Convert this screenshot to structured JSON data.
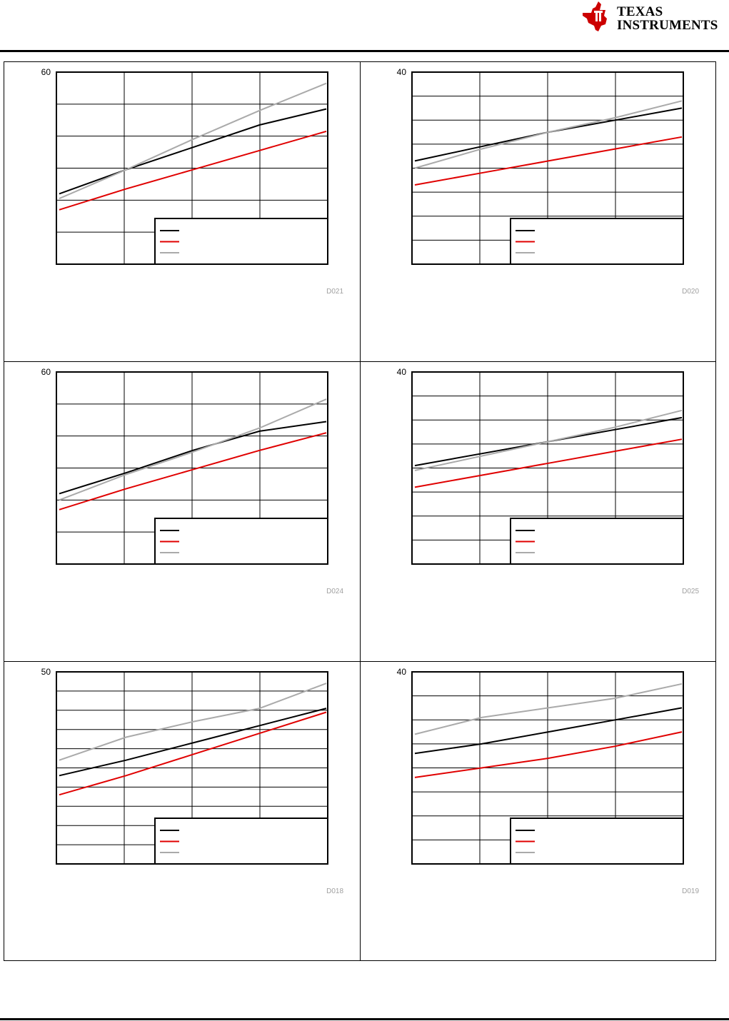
{
  "header": {
    "logo_line1": "TEXAS",
    "logo_line2": "INSTRUMENTS",
    "logo_colors": {
      "mark": "#cc0000"
    }
  },
  "colors": {
    "series1": "#000000",
    "series2": "#e00000",
    "series3": "#aaaaaa"
  },
  "chart_data": [
    {
      "type": "line",
      "figure_id": "D021",
      "ylim": [
        0,
        60
      ],
      "ytick_label": "60",
      "x": [
        0,
        1,
        2,
        3,
        4
      ],
      "grid": true,
      "legend": "bottom-right",
      "series": [
        {
          "values": [
            22,
            29.5,
            36.5,
            43.5,
            48.5
          ]
        },
        {
          "values": [
            17,
            23.5,
            29.5,
            35.5,
            41.5
          ]
        },
        {
          "values": [
            20.5,
            29.5,
            39,
            48,
            56.5
          ]
        }
      ]
    },
    {
      "type": "line",
      "figure_id": "D020",
      "ylim": [
        0,
        40
      ],
      "ytick_label": "40",
      "x": [
        0,
        1,
        2,
        3,
        4
      ],
      "grid": true,
      "legend": "bottom-right",
      "series": [
        {
          "values": [
            21.5,
            24.5,
            27.5,
            30,
            32.5
          ]
        },
        {
          "values": [
            16.5,
            19,
            21.5,
            24,
            26.5
          ]
        },
        {
          "values": [
            20,
            24,
            27.5,
            30.5,
            34
          ]
        }
      ]
    },
    {
      "type": "line",
      "figure_id": "D024",
      "ylim": [
        0,
        60
      ],
      "ytick_label": "60",
      "x": [
        0,
        1,
        2,
        3,
        4
      ],
      "grid": true,
      "legend": "bottom-right",
      "series": [
        {
          "values": [
            22.0,
            28.5,
            35.5,
            41.5,
            44.5
          ]
        },
        {
          "values": [
            17,
            23.5,
            29.5,
            35.5,
            41
          ]
        },
        {
          "values": [
            20,
            28,
            35,
            42.5,
            51.5
          ]
        }
      ]
    },
    {
      "type": "line",
      "figure_id": "D025",
      "ylim": [
        0,
        40
      ],
      "ytick_label": "40",
      "x": [
        0,
        1,
        2,
        3,
        4
      ],
      "grid": true,
      "legend": "bottom-right",
      "series": [
        {
          "values": [
            20.5,
            23,
            25.5,
            28,
            30.5
          ]
        },
        {
          "values": [
            16,
            18.5,
            21,
            23.5,
            26
          ]
        },
        {
          "values": [
            19.5,
            22.5,
            25.5,
            28.5,
            32
          ]
        }
      ]
    },
    {
      "type": "line",
      "figure_id": "D018",
      "ylim": [
        0,
        50
      ],
      "ytick_label": "50",
      "x": [
        0,
        1,
        2,
        3,
        4
      ],
      "grid": true,
      "legend": "bottom-right",
      "series": [
        {
          "values": [
            23,
            27,
            31.5,
            36,
            40.5
          ]
        },
        {
          "values": [
            18,
            23,
            28.5,
            34,
            39.5
          ]
        },
        {
          "values": [
            27,
            33,
            37,
            40.5,
            47
          ]
        }
      ]
    },
    {
      "type": "line",
      "figure_id": "D019",
      "ylim": [
        0,
        40
      ],
      "ytick_label": "40",
      "x": [
        0,
        1,
        2,
        3,
        4
      ],
      "grid": true,
      "legend": "bottom-right",
      "series": [
        {
          "values": [
            23,
            25,
            27.5,
            30,
            32.5
          ]
        },
        {
          "values": [
            18,
            20,
            22,
            24.5,
            27.5
          ]
        },
        {
          "values": [
            27,
            30.5,
            32.5,
            34.5,
            37.5
          ]
        }
      ]
    }
  ]
}
